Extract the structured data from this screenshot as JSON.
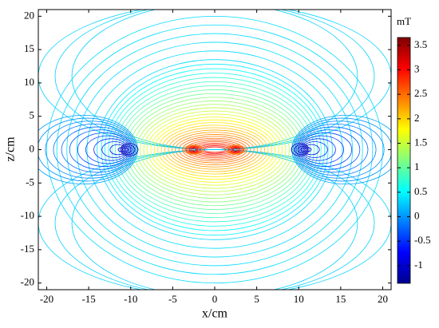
{
  "chart_data": {
    "type": "contour",
    "xlabel": "x/cm",
    "ylabel": "z/cm",
    "xlim": [
      -21,
      21
    ],
    "xticks": [
      -20,
      -15,
      -10,
      -5,
      0,
      5,
      10,
      15,
      20
    ],
    "ylim": [
      -21,
      21
    ],
    "yticks": [
      -20,
      -15,
      -10,
      -5,
      0,
      5,
      10,
      15,
      20
    ],
    "colorbar": {
      "label": "mT",
      "clim": [
        -1.36,
        3.66
      ],
      "ticks": [
        -1,
        -0.5,
        0,
        0.5,
        1,
        1.5,
        2,
        2.5,
        3,
        3.5
      ],
      "colormap": "jet"
    }
  }
}
